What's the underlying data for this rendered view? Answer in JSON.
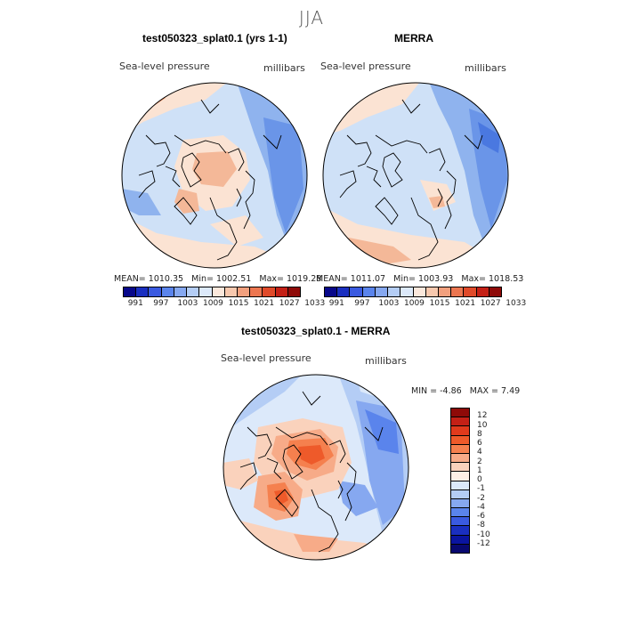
{
  "season": "JJA",
  "panels": {
    "model": {
      "title": "test050323_splat0.1 (yrs 1-1)",
      "variable": "Sea-level pressure",
      "units": "millibars",
      "stats": {
        "mean_label": "MEAN=",
        "mean": "1010.35",
        "min_label": "Min=",
        "min": "1002.51",
        "max_label": "Max=",
        "max": "1019.28"
      }
    },
    "obs": {
      "title": "MERRA",
      "variable": "Sea-level pressure",
      "units": "millibars",
      "stats": {
        "mean_label": "MEAN=",
        "mean": "1011.07",
        "min_label": "Min=",
        "min": "1003.93",
        "max_label": "Max=",
        "max": "1018.53"
      }
    },
    "diff": {
      "title": "test050323_splat0.1 - MERRA",
      "variable": "Sea-level pressure",
      "units": "millibars",
      "stats": {
        "min_label": "MIN =",
        "min": "-4.86",
        "max_label": "MAX =",
        "max": "7.49"
      }
    }
  },
  "colorbar_abs": {
    "colors": [
      "#08088a",
      "#1a2fc0",
      "#3a5ae0",
      "#5a84ec",
      "#86a8f0",
      "#b4cdf5",
      "#dce9fa",
      "#fbe8dc",
      "#f7c8ae",
      "#f2a07e",
      "#ec7650",
      "#e04a2a",
      "#c42016",
      "#8e0a08"
    ],
    "ticks": [
      "991",
      "997",
      "1003",
      "1009",
      "1015",
      "1021",
      "1027",
      "1033"
    ]
  },
  "colorbar_diff": {
    "colors": [
      "#8e0a08",
      "#c42016",
      "#e03a1c",
      "#ee5a2a",
      "#f5804e",
      "#f7ab88",
      "#fad2bc",
      "#fdf0e6",
      "#dce9fa",
      "#b4cdf5",
      "#86a8f0",
      "#5a84ec",
      "#3a5ae0",
      "#1a2fc0",
      "#0a14a0",
      "#080870"
    ],
    "ticks": [
      "12",
      "10",
      "8",
      "6",
      "4",
      "2",
      "1",
      "0",
      "-1",
      "-2",
      "-4",
      "-6",
      "-8",
      "-10",
      "-12"
    ]
  },
  "palette": {
    "light_blue": "#cfe1f7",
    "mid_blue": "#8fb3ee",
    "blue": "#6a95e8",
    "light_peach": "#fbe3d3",
    "peach": "#f4b898",
    "orange": "#ef8a5c",
    "red_orange": "#e0552e"
  }
}
